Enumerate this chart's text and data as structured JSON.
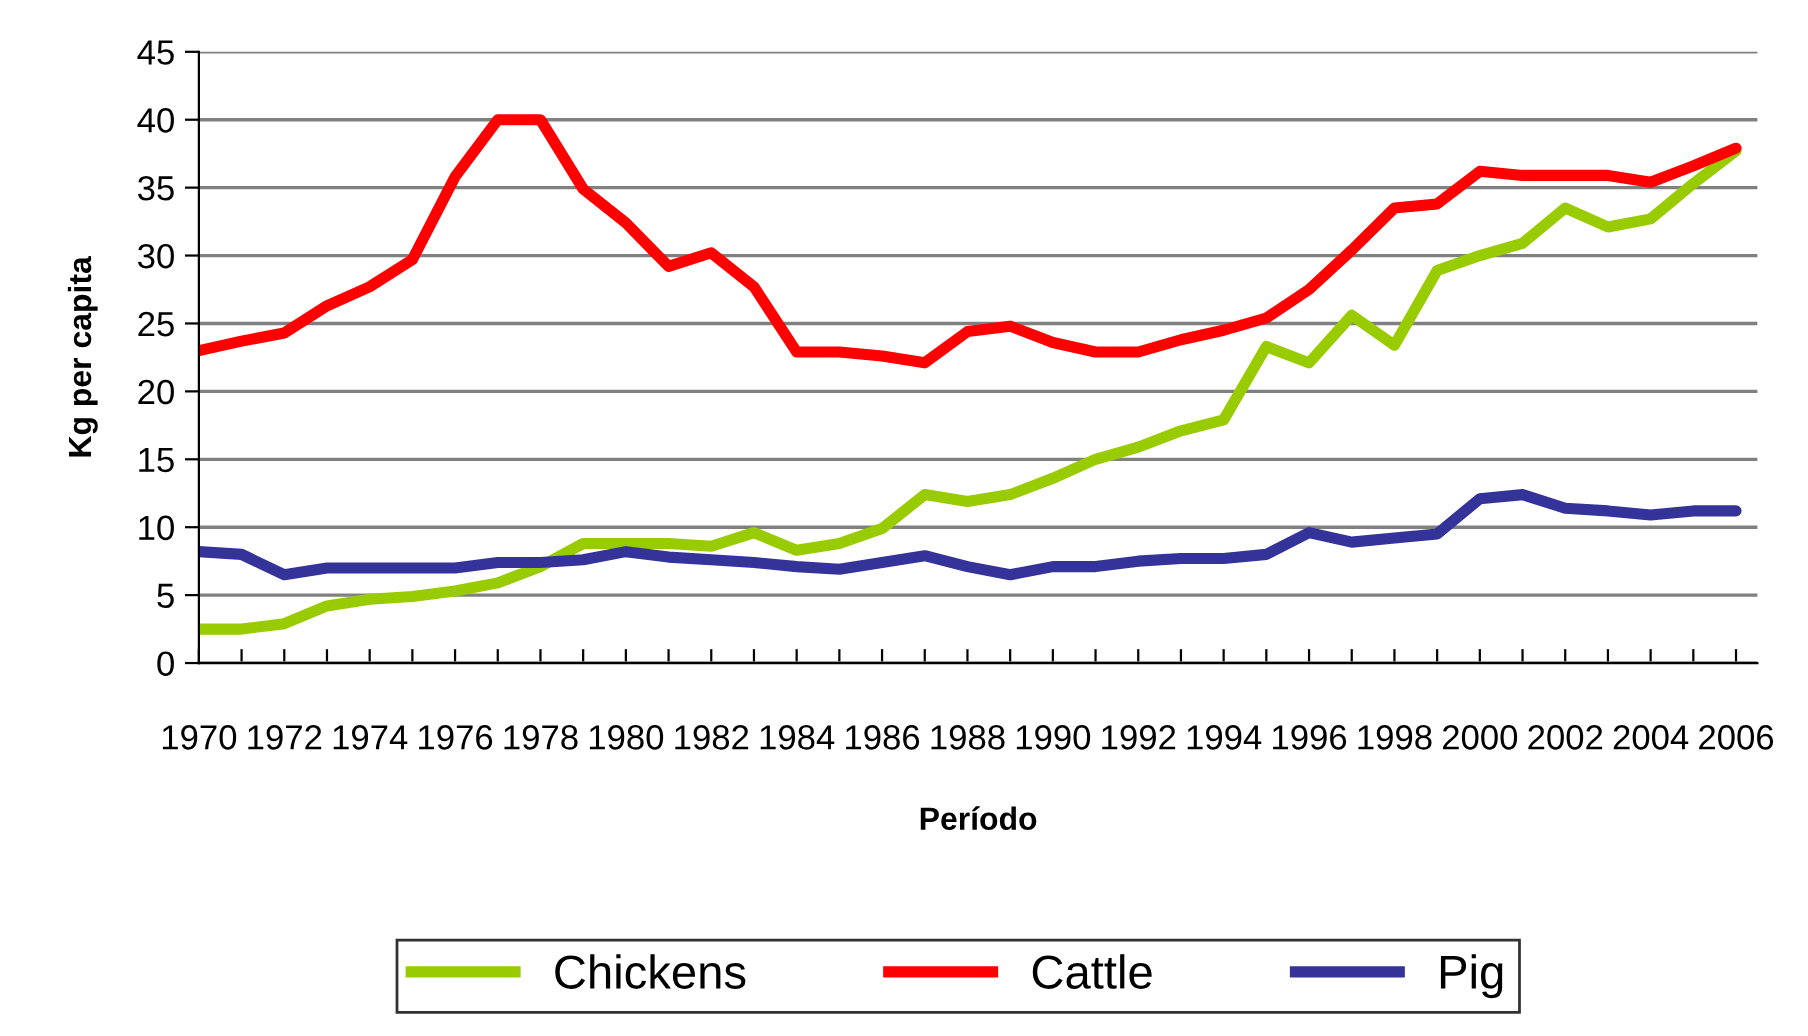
{
  "chart_data": {
    "type": "line",
    "xlabel": "Período",
    "ylabel": "Kg per capita",
    "x": [
      1970,
      1971,
      1972,
      1973,
      1974,
      1975,
      1976,
      1977,
      1978,
      1979,
      1980,
      1981,
      1982,
      1983,
      1984,
      1985,
      1986,
      1987,
      1988,
      1989,
      1990,
      1991,
      1992,
      1993,
      1994,
      1995,
      1996,
      1997,
      1998,
      1999,
      2000,
      2001,
      2002,
      2003,
      2004,
      2005,
      2006
    ],
    "series": [
      {
        "name": "Chickens",
        "color": "#99cc00",
        "values": [
          2.5,
          2.5,
          2.9,
          4.2,
          4.7,
          4.9,
          5.3,
          5.9,
          7.1,
          8.8,
          8.8,
          8.8,
          8.6,
          9.6,
          8.3,
          8.8,
          9.9,
          12.4,
          11.9,
          12.4,
          13.6,
          15.0,
          15.9,
          17.1,
          17.9,
          23.3,
          22.1,
          25.6,
          23.4,
          28.9,
          30.0,
          30.9,
          33.5,
          32.1,
          32.7,
          35.3,
          37.7
        ]
      },
      {
        "name": "Cattle",
        "color": "#ff0000",
        "values": [
          23.0,
          23.7,
          24.3,
          26.3,
          27.7,
          29.7,
          35.8,
          40.0,
          40.0,
          34.9,
          32.4,
          29.2,
          30.2,
          27.7,
          22.9,
          22.9,
          22.6,
          22.1,
          24.4,
          24.8,
          23.6,
          22.9,
          22.9,
          23.8,
          24.5,
          25.4,
          27.5,
          30.4,
          33.5,
          33.8,
          36.2,
          35.9,
          35.9,
          35.9,
          35.4,
          36.6,
          37.9
        ]
      },
      {
        "name": "Pig",
        "color": "#333399",
        "values": [
          8.2,
          8.0,
          6.5,
          7.0,
          7.0,
          7.0,
          7.0,
          7.4,
          7.4,
          7.6,
          8.2,
          7.8,
          7.6,
          7.4,
          7.1,
          6.9,
          7.4,
          7.9,
          7.1,
          6.5,
          7.1,
          7.1,
          7.5,
          7.7,
          7.7,
          8.0,
          9.6,
          8.9,
          9.2,
          9.5,
          12.1,
          12.4,
          11.4,
          11.2,
          10.9,
          11.2,
          11.2
        ]
      }
    ],
    "xlim": [
      1970,
      2006.5
    ],
    "xticks": [
      1970,
      {
        "value": 1971,
        "label": null
      },
      1972,
      {
        "value": 1973,
        "label": null
      },
      1974,
      {
        "value": 1975,
        "label": null
      },
      1976,
      {
        "value": 1977,
        "label": null
      },
      1978,
      {
        "value": 1979,
        "label": null
      },
      1980,
      {
        "value": 1981,
        "label": null
      },
      1982,
      {
        "value": 1983,
        "label": null
      },
      1984,
      {
        "value": 1985,
        "label": null
      },
      1986,
      {
        "value": 1987,
        "label": null
      },
      1988,
      {
        "value": 1989,
        "label": null
      },
      1990,
      {
        "value": 1991,
        "label": null
      },
      1992,
      {
        "value": 1993,
        "label": null
      },
      1994,
      {
        "value": 1995,
        "label": null
      },
      1996,
      {
        "value": 1997,
        "label": null
      },
      1998,
      {
        "value": 1999,
        "label": null
      },
      2000,
      {
        "value": 2001,
        "label": null
      },
      2002,
      {
        "value": 2003,
        "label": null
      },
      2004,
      {
        "value": 2005,
        "label": null
      },
      2006
    ],
    "ylim": [
      0,
      45
    ],
    "yticks": [
      0,
      5,
      10,
      15,
      20,
      25,
      30,
      35,
      40,
      45
    ],
    "grid": "y",
    "legend": "bottom",
    "marker": "none",
    "line_style": "solid"
  }
}
